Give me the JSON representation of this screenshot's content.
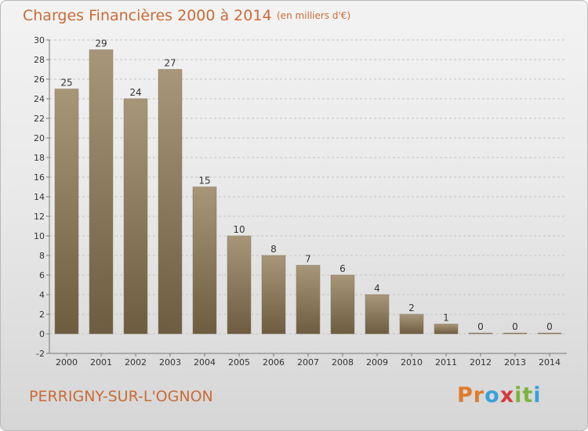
{
  "header": {
    "title": "Charges Financières 2000 à 2014",
    "unit": "(en milliers d'€)"
  },
  "footer": {
    "commune": "PERRIGNY-SUR-L'OGNON",
    "logo": [
      "P",
      "r",
      "o",
      "x",
      "i",
      "t",
      "i"
    ]
  },
  "colors": {
    "title": "#c96b36",
    "bar_top": "#a89679",
    "bar_bottom": "#6e5c41",
    "logo": [
      "#e07b2a",
      "#e07b2a",
      "#3aa0d8",
      "#d63a3a",
      "#7ab43c",
      "#7ab43c",
      "#3aa0d8"
    ]
  },
  "chart_data": {
    "type": "bar",
    "categories": [
      "2000",
      "2001",
      "2002",
      "2003",
      "2004",
      "2005",
      "2006",
      "2007",
      "2008",
      "2009",
      "2010",
      "2011",
      "2012",
      "2013",
      "2014"
    ],
    "values": [
      25,
      29,
      24,
      27,
      15,
      10,
      8,
      7,
      6,
      4,
      2,
      1,
      0,
      0,
      0
    ],
    "ylim": [
      -2,
      30
    ],
    "yticks": [
      -2,
      0,
      2,
      4,
      6,
      8,
      10,
      12,
      14,
      16,
      18,
      20,
      22,
      24,
      26,
      28,
      30
    ],
    "title": "Charges Financières 2000 à 2014",
    "ylabel": "(en milliers d'€)",
    "grid": "horizontal dashed"
  }
}
